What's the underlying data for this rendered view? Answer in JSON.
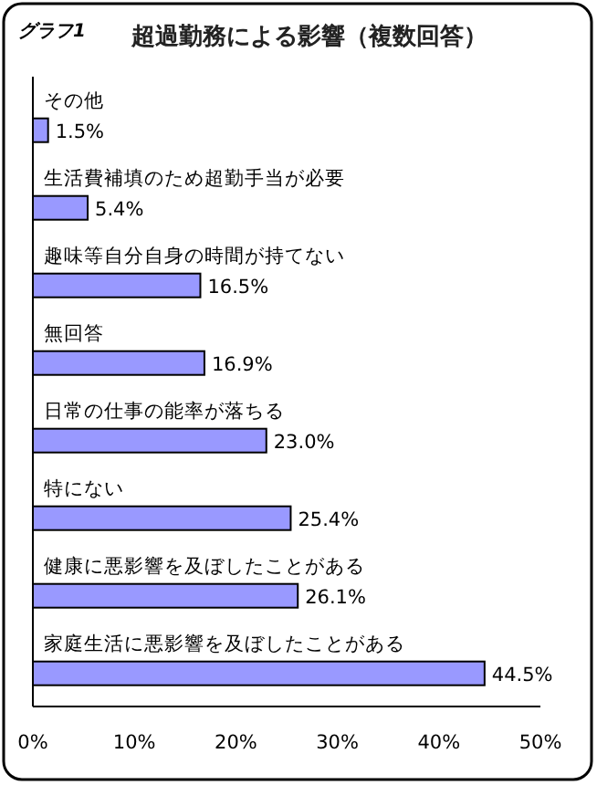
{
  "chart_data": {
    "type": "bar",
    "orientation": "horizontal",
    "title": "超過勤務による影響（複数回答）",
    "annotations": [
      "グラフ1"
    ],
    "categories": [
      "その他",
      "生活費補填のため超勤手当が必要",
      "趣味等自分自身の時間が持てない",
      "無回答",
      "日常の仕事の能率が落ちる",
      "特にない",
      "健康に悪影響を及ぼしたことがある",
      "家庭生活に悪影響を及ぼしたことがある"
    ],
    "values": [
      1.5,
      5.4,
      16.5,
      16.9,
      23.0,
      25.4,
      26.1,
      44.5
    ],
    "value_labels": [
      "1.5%",
      "5.4%",
      "16.5%",
      "16.9%",
      "23.0%",
      "25.4%",
      "26.1%",
      "44.5%"
    ],
    "color": "#9999ff",
    "xlim": [
      0,
      50
    ],
    "xticks": [
      {
        "value": 0,
        "label": "0%"
      },
      {
        "value": 10,
        "label": "10%"
      },
      {
        "value": 20,
        "label": "20%"
      },
      {
        "value": 30,
        "label": "30%"
      },
      {
        "value": 40,
        "label": "40%"
      },
      {
        "value": 50,
        "label": "50%"
      }
    ],
    "grid": false
  }
}
